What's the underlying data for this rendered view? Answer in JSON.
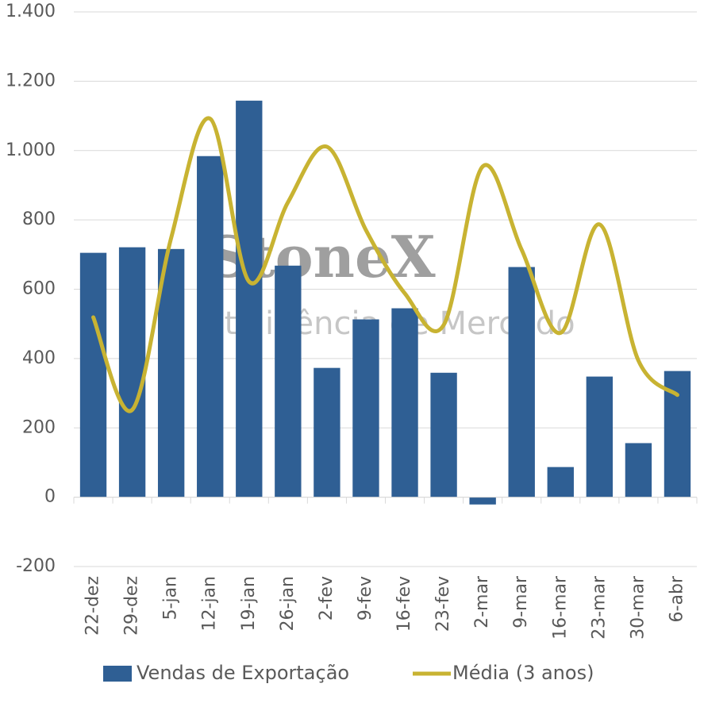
{
  "chart_data": {
    "type": "bar",
    "watermark": [
      "StoneX",
      "Inteligência de Mercado"
    ],
    "categories": [
      "22-dez",
      "29-dez",
      "5-jan",
      "12-jan",
      "19-jan",
      "26-jan",
      "2-fev",
      "9-fev",
      "16-fev",
      "23-fev",
      "2-mar",
      "9-mar",
      "16-mar",
      "23-mar",
      "30-mar",
      "6-abr"
    ],
    "series": [
      {
        "name": "Vendas de Exportação",
        "type": "bar",
        "color": "#2f5f94",
        "values": [
          705,
          721,
          716,
          984,
          1144,
          668,
          373,
          513,
          545,
          359,
          -21,
          664,
          87,
          348,
          156,
          364
        ]
      },
      {
        "name": "Média (3 anos)",
        "type": "line",
        "color": "#c8b332",
        "smooth": true,
        "values": [
          519,
          252,
          748,
          1092,
          622,
          851,
          1011,
          771,
          588,
          497,
          954,
          714,
          474,
          787,
          394,
          295
        ]
      }
    ],
    "ylim": [
      -200,
      1400
    ],
    "yticks": [
      -200,
      0,
      200,
      400,
      600,
      800,
      {
        "value": 1000,
        "label": "1.000"
      },
      {
        "value": 1200,
        "label": "1.200"
      },
      {
        "value": 1400,
        "label": "1.400"
      }
    ],
    "grid": true,
    "legend": "bottom"
  }
}
